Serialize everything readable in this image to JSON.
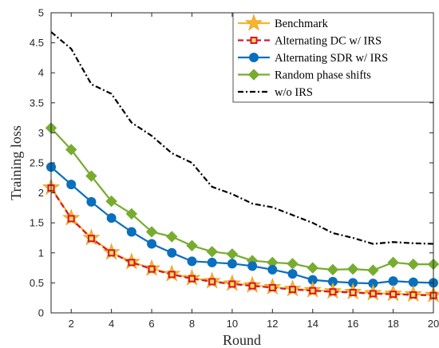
{
  "chart_data": {
    "type": "line",
    "title": "",
    "xlabel": "Round",
    "ylabel": "Training loss",
    "xlim": [
      1,
      20
    ],
    "ylim": [
      0,
      5
    ],
    "x_ticks": [
      2,
      4,
      6,
      8,
      10,
      12,
      14,
      16,
      18,
      20
    ],
    "y_ticks": [
      0,
      0.5,
      1,
      1.5,
      2,
      2.5,
      3,
      3.5,
      4,
      4.5,
      5
    ],
    "grid": false,
    "legend_position": "top-right",
    "x": [
      1,
      2,
      3,
      4,
      5,
      6,
      7,
      8,
      9,
      10,
      11,
      12,
      13,
      14,
      15,
      16,
      17,
      18,
      19,
      20
    ],
    "series": [
      {
        "name": "Benchmark",
        "color": "#f7b52c",
        "line_style": "solid",
        "marker": "star",
        "values": [
          2.09,
          1.58,
          1.25,
          1.01,
          0.85,
          0.74,
          0.65,
          0.58,
          0.53,
          0.49,
          0.46,
          0.43,
          0.4,
          0.38,
          0.36,
          0.35,
          0.33,
          0.32,
          0.31,
          0.3
        ]
      },
      {
        "name": "Alternating DC w/ IRS",
        "color": "#d9152b",
        "line_style": "dashed",
        "marker": "square",
        "values": [
          2.08,
          1.57,
          1.24,
          1.0,
          0.84,
          0.73,
          0.64,
          0.57,
          0.52,
          0.48,
          0.45,
          0.42,
          0.39,
          0.37,
          0.35,
          0.34,
          0.32,
          0.31,
          0.3,
          0.29
        ]
      },
      {
        "name": "Alternating SDR w/ IRS",
        "color": "#0a6fbd",
        "line_style": "solid",
        "marker": "circle",
        "values": [
          2.43,
          2.14,
          1.85,
          1.58,
          1.35,
          1.15,
          1.0,
          0.86,
          0.84,
          0.82,
          0.78,
          0.72,
          0.65,
          0.55,
          0.52,
          0.5,
          0.49,
          0.53,
          0.51,
          0.5
        ]
      },
      {
        "name": "Random phase shifts",
        "color": "#77ac30",
        "line_style": "solid",
        "marker": "diamond",
        "values": [
          3.08,
          2.72,
          2.28,
          1.86,
          1.65,
          1.35,
          1.27,
          1.12,
          1.02,
          0.98,
          0.87,
          0.84,
          0.82,
          0.75,
          0.72,
          0.73,
          0.71,
          0.84,
          0.81,
          0.81
        ]
      },
      {
        "name": "w/o IRS",
        "color": "#000000",
        "line_style": "dashdot",
        "marker": "none",
        "values": [
          4.68,
          4.4,
          3.81,
          3.65,
          3.17,
          2.95,
          2.66,
          2.5,
          2.1,
          1.98,
          1.82,
          1.76,
          1.63,
          1.5,
          1.33,
          1.25,
          1.15,
          1.18,
          1.16,
          1.15
        ]
      }
    ]
  }
}
